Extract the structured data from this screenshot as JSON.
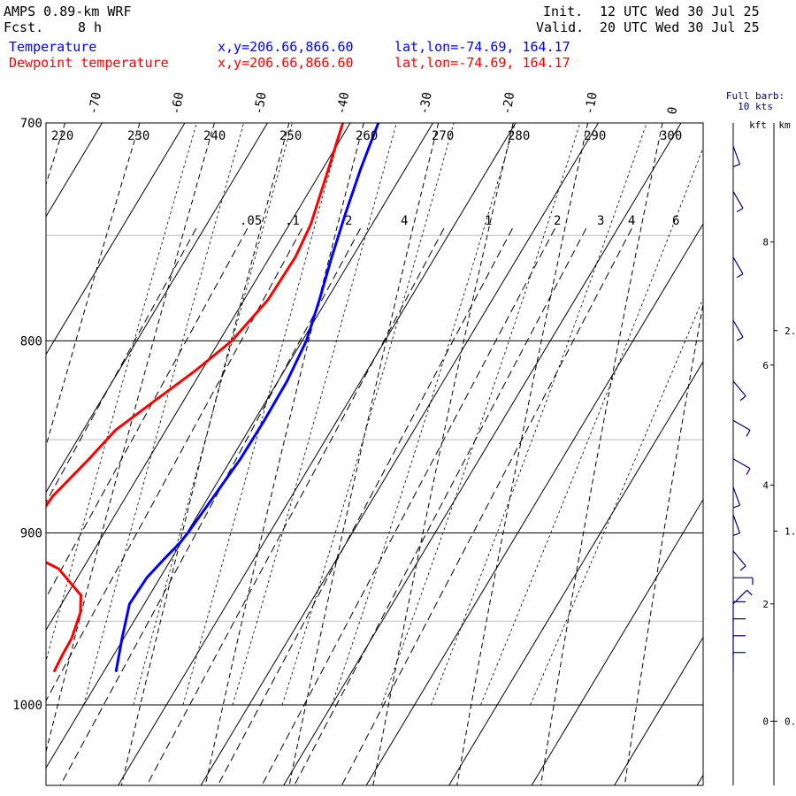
{
  "header": {
    "model": "AMPS 0.89-km WRF",
    "fcst_label": "Fcst.",
    "fcst_value": "8 h",
    "init_label": "Init.",
    "init_time": "12 UTC Wed 30 Jul 25",
    "valid_label": "Valid.",
    "valid_time": "20 UTC Wed 30 Jul 25"
  },
  "legend": [
    {
      "name": "Temperature",
      "xy": "x,y=206.66,866.60",
      "latlon": "lat,lon=-74.69, 164.17",
      "color": "#0000ff"
    },
    {
      "name": "Dewpoint temperature",
      "xy": "x,y=206.66,866.60",
      "latlon": "lat,lon=-74.69, 164.17",
      "color": "#ff0000"
    }
  ],
  "barb_legend": {
    "line1": "Full barb:",
    "line2": "10 kts"
  },
  "chart_data": {
    "type": "line",
    "title": "AMPS 0.89-km WRF",
    "y_scale": "log",
    "ylim": [
      1040,
      700
    ],
    "isobars": [
      700,
      800,
      900,
      1000
    ],
    "light_isobars": [
      750,
      850,
      950
    ],
    "isotherm_labels": [
      -70,
      -60,
      -50,
      -40,
      -30,
      -20,
      -10,
      0
    ],
    "dry_adiabat_labels": [
      220,
      230,
      240,
      250,
      260,
      270,
      280,
      290,
      300
    ],
    "mixing_ratio_labels": [
      ".05",
      ".1",
      "2",
      "4",
      "1",
      "2",
      "3",
      "4",
      "6"
    ],
    "height_axis": {
      "kft_label": "kft",
      "km_label": "km",
      "kft_ticks": [
        {
          "label": "0",
          "p": 1010
        },
        {
          "label": "2",
          "p": 940
        },
        {
          "label": "4",
          "p": 874
        },
        {
          "label": "6",
          "p": 812
        },
        {
          "label": "8",
          "p": 753
        }
      ],
      "km_ticks": [
        {
          "label": "0.",
          "p": 1010
        },
        {
          "label": "1.",
          "p": 899
        },
        {
          "label": "2.",
          "p": 795
        }
      ]
    },
    "series": [
      {
        "name": "Temperature",
        "color": "#0000ff",
        "p": [
          980,
          960,
          940,
          925,
          915,
          905,
          900,
          880,
          860,
          840,
          820,
          800,
          780,
          760,
          740,
          720,
          700
        ],
        "t": [
          -28.5,
          -30.2,
          -31.8,
          -31.6,
          -30.9,
          -30.1,
          -29.9,
          -29.4,
          -28.9,
          -28.8,
          -28.9,
          -29.5,
          -30.9,
          -32.5,
          -34.0,
          -35.4,
          -36.6
        ]
      },
      {
        "name": "Dewpoint temperature",
        "color": "#ff0000",
        "p": [
          980,
          970,
          960,
          945,
          935,
          920,
          910,
          900,
          880,
          860,
          845,
          830,
          815,
          800,
          780,
          760,
          745,
          720,
          700
        ],
        "t": [
          -36.0,
          -36.2,
          -36.3,
          -37.1,
          -38.3,
          -42.9,
          -48.4,
          -49.3,
          -48.9,
          -47.2,
          -46.1,
          -43.5,
          -40.8,
          -38.5,
          -37.1,
          -36.9,
          -37.4,
          -39.3,
          -40.9
        ]
      }
    ],
    "wind_barbs": [
      {
        "p": 980,
        "speed": 10,
        "dir": 180
      },
      {
        "p": 970,
        "speed": 10,
        "dir": 180
      },
      {
        "p": 960,
        "speed": 10,
        "dir": 180
      },
      {
        "p": 950,
        "speed": 10,
        "dir": 180
      },
      {
        "p": 940,
        "speed": 5,
        "dir": 225
      },
      {
        "p": 925,
        "speed": 5,
        "dir": 270
      },
      {
        "p": 910,
        "speed": 5,
        "dir": 320
      },
      {
        "p": 890,
        "speed": 5,
        "dir": 340
      },
      {
        "p": 875,
        "speed": 5,
        "dir": 340
      },
      {
        "p": 860,
        "speed": 5,
        "dir": 300
      },
      {
        "p": 840,
        "speed": 5,
        "dir": 300
      },
      {
        "p": 820,
        "speed": 5,
        "dir": 320
      },
      {
        "p": 790,
        "speed": 5,
        "dir": 330
      },
      {
        "p": 760,
        "speed": 5,
        "dir": 330
      },
      {
        "p": 730,
        "speed": 5,
        "dir": 330
      },
      {
        "p": 710,
        "speed": 5,
        "dir": 340
      }
    ]
  }
}
